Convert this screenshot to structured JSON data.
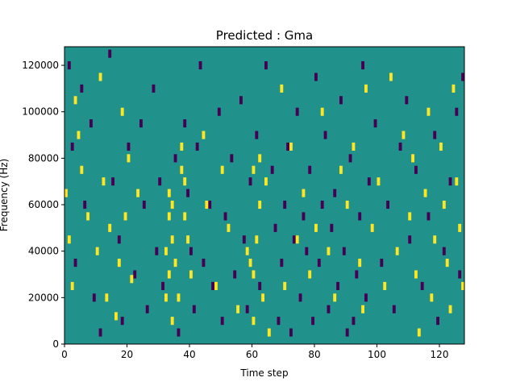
{
  "chart_data": {
    "type": "heatmap",
    "title": "Predicted : Gma",
    "xlabel": "Time step",
    "ylabel": "Frequency (Hz)",
    "xlim": [
      0,
      128
    ],
    "ylim": [
      0,
      128000
    ],
    "x_ticks": [
      0,
      20,
      40,
      60,
      80,
      100,
      120
    ],
    "x_tick_labels": [
      "0",
      "20",
      "40",
      "60",
      "80",
      "100",
      "120"
    ],
    "y_ticks": [
      0,
      20000,
      40000,
      60000,
      80000,
      100000,
      120000
    ],
    "y_tick_labels": [
      "0",
      "20000",
      "40000",
      "60000",
      "80000",
      "100000",
      "120000"
    ],
    "grid": false,
    "legend": "none",
    "value_levels": [
      -1,
      0,
      1
    ],
    "colormap": {
      "-1": "#440154",
      "0": "#21918c",
      "1": "#fde725"
    },
    "background_value": 0,
    "yellow_cells": [
      [
        0,
        65000
      ],
      [
        1,
        45000
      ],
      [
        2,
        25000
      ],
      [
        3,
        105000
      ],
      [
        4,
        90000
      ],
      [
        5,
        75000
      ],
      [
        7,
        55000
      ],
      [
        10,
        40000
      ],
      [
        11,
        115000
      ],
      [
        12,
        70000
      ],
      [
        13,
        20000
      ],
      [
        14,
        50000
      ],
      [
        16,
        12000
      ],
      [
        17,
        35000
      ],
      [
        18,
        100000
      ],
      [
        19,
        55000
      ],
      [
        20,
        80000
      ],
      [
        21,
        28000
      ],
      [
        23,
        65000
      ],
      [
        32,
        20000
      ],
      [
        32,
        40000
      ],
      [
        33,
        30000
      ],
      [
        33,
        55000
      ],
      [
        33,
        65000
      ],
      [
        34,
        10000
      ],
      [
        34,
        45000
      ],
      [
        34,
        60000
      ],
      [
        35,
        35000
      ],
      [
        36,
        20000
      ],
      [
        37,
        85000
      ],
      [
        37,
        75000
      ],
      [
        38,
        55000
      ],
      [
        38,
        70000
      ],
      [
        39,
        45000
      ],
      [
        40,
        30000
      ],
      [
        44,
        90000
      ],
      [
        45,
        60000
      ],
      [
        48,
        25000
      ],
      [
        50,
        75000
      ],
      [
        52,
        50000
      ],
      [
        55,
        15000
      ],
      [
        58,
        40000
      ],
      [
        59,
        35000
      ],
      [
        60,
        10000
      ],
      [
        60,
        30000
      ],
      [
        60,
        75000
      ],
      [
        61,
        45000
      ],
      [
        62,
        60000
      ],
      [
        62,
        80000
      ],
      [
        63,
        20000
      ],
      [
        64,
        70000
      ],
      [
        65,
        5000
      ],
      [
        69,
        110000
      ],
      [
        70,
        25000
      ],
      [
        72,
        85000
      ],
      [
        74,
        45000
      ],
      [
        76,
        65000
      ],
      [
        78,
        30000
      ],
      [
        80,
        50000
      ],
      [
        82,
        100000
      ],
      [
        84,
        40000
      ],
      [
        86,
        20000
      ],
      [
        88,
        75000
      ],
      [
        90,
        60000
      ],
      [
        92,
        85000
      ],
      [
        94,
        35000
      ],
      [
        95,
        15000
      ],
      [
        96,
        110000
      ],
      [
        98,
        50000
      ],
      [
        100,
        70000
      ],
      [
        102,
        25000
      ],
      [
        104,
        115000
      ],
      [
        106,
        40000
      ],
      [
        108,
        90000
      ],
      [
        110,
        55000
      ],
      [
        111,
        80000
      ],
      [
        112,
        30000
      ],
      [
        113,
        5000
      ],
      [
        115,
        65000
      ],
      [
        116,
        100000
      ],
      [
        117,
        20000
      ],
      [
        118,
        45000
      ],
      [
        120,
        85000
      ],
      [
        121,
        60000
      ],
      [
        122,
        35000
      ],
      [
        123,
        15000
      ],
      [
        124,
        110000
      ],
      [
        125,
        70000
      ],
      [
        126,
        50000
      ],
      [
        127,
        25000
      ]
    ],
    "purple_cells": [
      [
        1,
        120000
      ],
      [
        2,
        85000
      ],
      [
        3,
        35000
      ],
      [
        5,
        110000
      ],
      [
        6,
        60000
      ],
      [
        8,
        95000
      ],
      [
        9,
        20000
      ],
      [
        11,
        5000
      ],
      [
        14,
        125000
      ],
      [
        15,
        70000
      ],
      [
        17,
        45000
      ],
      [
        18,
        10000
      ],
      [
        20,
        85000
      ],
      [
        22,
        30000
      ],
      [
        24,
        95000
      ],
      [
        25,
        60000
      ],
      [
        26,
        15000
      ],
      [
        28,
        110000
      ],
      [
        29,
        40000
      ],
      [
        30,
        70000
      ],
      [
        31,
        25000
      ],
      [
        35,
        80000
      ],
      [
        36,
        5000
      ],
      [
        38,
        95000
      ],
      [
        39,
        65000
      ],
      [
        40,
        40000
      ],
      [
        41,
        15000
      ],
      [
        42,
        85000
      ],
      [
        43,
        120000
      ],
      [
        44,
        35000
      ],
      [
        46,
        60000
      ],
      [
        47,
        25000
      ],
      [
        49,
        100000
      ],
      [
        50,
        10000
      ],
      [
        51,
        55000
      ],
      [
        53,
        80000
      ],
      [
        54,
        30000
      ],
      [
        56,
        105000
      ],
      [
        57,
        45000
      ],
      [
        58,
        15000
      ],
      [
        59,
        70000
      ],
      [
        61,
        90000
      ],
      [
        62,
        25000
      ],
      [
        64,
        120000
      ],
      [
        66,
        75000
      ],
      [
        67,
        50000
      ],
      [
        68,
        10000
      ],
      [
        69,
        35000
      ],
      [
        70,
        60000
      ],
      [
        71,
        85000
      ],
      [
        72,
        5000
      ],
      [
        73,
        45000
      ],
      [
        74,
        100000
      ],
      [
        75,
        20000
      ],
      [
        76,
        55000
      ],
      [
        77,
        40000
      ],
      [
        78,
        75000
      ],
      [
        79,
        10000
      ],
      [
        80,
        115000
      ],
      [
        81,
        35000
      ],
      [
        82,
        60000
      ],
      [
        83,
        90000
      ],
      [
        84,
        15000
      ],
      [
        85,
        50000
      ],
      [
        86,
        65000
      ],
      [
        87,
        25000
      ],
      [
        88,
        105000
      ],
      [
        89,
        40000
      ],
      [
        90,
        5000
      ],
      [
        91,
        80000
      ],
      [
        92,
        10000
      ],
      [
        93,
        30000
      ],
      [
        94,
        55000
      ],
      [
        95,
        120000
      ],
      [
        96,
        20000
      ],
      [
        97,
        70000
      ],
      [
        99,
        95000
      ],
      [
        101,
        35000
      ],
      [
        103,
        60000
      ],
      [
        105,
        15000
      ],
      [
        107,
        85000
      ],
      [
        109,
        105000
      ],
      [
        110,
        45000
      ],
      [
        112,
        75000
      ],
      [
        114,
        25000
      ],
      [
        116,
        55000
      ],
      [
        118,
        90000
      ],
      [
        119,
        10000
      ],
      [
        121,
        40000
      ],
      [
        123,
        70000
      ],
      [
        125,
        100000
      ],
      [
        126,
        30000
      ],
      [
        127,
        115000
      ]
    ]
  }
}
